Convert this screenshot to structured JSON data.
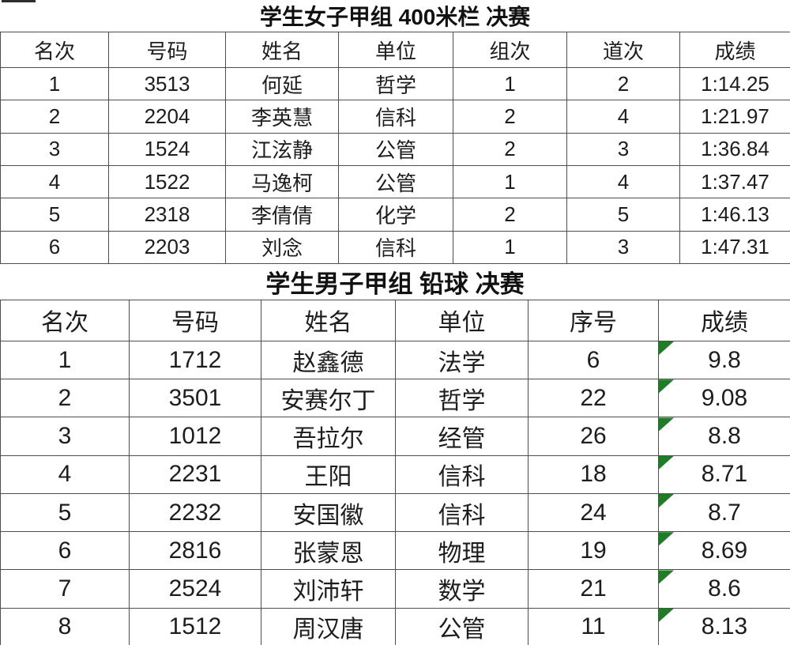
{
  "colors": {
    "flag_green": "#1f7d28",
    "border": "#4f4f4f",
    "text": "#1d1d1d"
  },
  "tables": [
    {
      "id": "women-400m-hurdles",
      "title": "学生女子甲组 400米栏 决赛",
      "headers": [
        "名次",
        "号码",
        "姓名",
        "单位",
        "组次",
        "道次",
        "成绩"
      ],
      "rows": [
        [
          "1",
          "3513",
          "何延",
          "哲学",
          "1",
          "2",
          "1:14.25"
        ],
        [
          "2",
          "2204",
          "李英慧",
          "信科",
          "2",
          "4",
          "1:21.97"
        ],
        [
          "3",
          "1524",
          "江泫静",
          "公管",
          "2",
          "3",
          "1:36.84"
        ],
        [
          "4",
          "1522",
          "马逸柯",
          "公管",
          "1",
          "4",
          "1:37.47"
        ],
        [
          "5",
          "2318",
          "李倩倩",
          "化学",
          "2",
          "5",
          "1:46.13"
        ],
        [
          "6",
          "2203",
          "刘念",
          "信科",
          "1",
          "3",
          "1:47.31"
        ]
      ],
      "flag_column": null
    },
    {
      "id": "men-shot-put",
      "title": "学生男子甲组 铅球 决赛",
      "headers": [
        "名次",
        "号码",
        "姓名",
        "单位",
        "序号",
        "成绩"
      ],
      "rows": [
        [
          "1",
          "1712",
          "赵鑫德",
          "法学",
          "6",
          "9.8"
        ],
        [
          "2",
          "3501",
          "安赛尔丁",
          "哲学",
          "22",
          "9.08"
        ],
        [
          "3",
          "1012",
          "吾拉尔",
          "经管",
          "26",
          "8.8"
        ],
        [
          "4",
          "2231",
          "王阳",
          "信科",
          "18",
          "8.71"
        ],
        [
          "5",
          "2232",
          "安国徽",
          "信科",
          "24",
          "8.7"
        ],
        [
          "6",
          "2816",
          "张蒙恩",
          "物理",
          "19",
          "8.69"
        ],
        [
          "7",
          "2524",
          "刘沛轩",
          "数学",
          "21",
          "8.6"
        ],
        [
          "8",
          "1512",
          "周汉唐",
          "公管",
          "11",
          "8.13"
        ]
      ],
      "flag_column": 5
    }
  ]
}
